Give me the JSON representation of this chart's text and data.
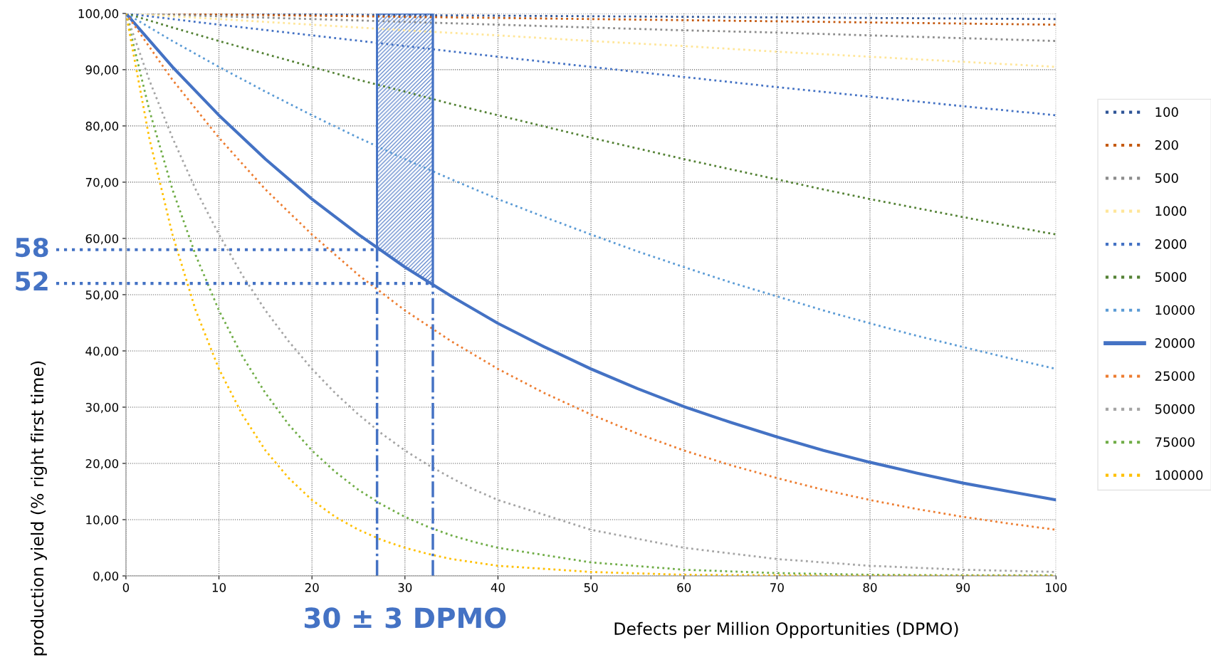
{
  "chart_data": {
    "type": "line",
    "xlabel": "Defects per Million Opportunities (DPMO)",
    "ylabel": "production yield (% right first time)",
    "xlim": [
      0,
      100
    ],
    "ylim": [
      0,
      100
    ],
    "xticks": [
      0,
      10,
      20,
      30,
      40,
      50,
      60,
      70,
      80,
      90,
      100
    ],
    "yticks": [
      {
        "value": 0,
        "label": "0,00"
      },
      {
        "value": 10,
        "label": "10,00"
      },
      {
        "value": 20,
        "label": "20,00"
      },
      {
        "value": 30,
        "label": "30,00"
      },
      {
        "value": 40,
        "label": "40,00"
      },
      {
        "value": 50,
        "label": "50,00"
      },
      {
        "value": 60,
        "label": "60,00"
      },
      {
        "value": 70,
        "label": "70,00"
      },
      {
        "value": 80,
        "label": "80,00"
      },
      {
        "value": 90,
        "label": "90,00"
      },
      {
        "value": 100,
        "label": "100,00"
      }
    ],
    "grid": true,
    "legend": "right",
    "marker": "none",
    "line_style": "dotted",
    "series": [
      {
        "name": "100",
        "color": "#2f5597",
        "x": [
          0,
          10,
          20,
          30,
          40,
          50,
          60,
          70,
          80,
          90,
          100
        ],
        "values": [
          100,
          99.9,
          99.8,
          99.7,
          99.6,
          99.5,
          99.4,
          99.3,
          99.2,
          99.1,
          99.0
        ]
      },
      {
        "name": "200",
        "color": "#c55a11",
        "x": [
          0,
          10,
          20,
          30,
          40,
          50,
          60,
          70,
          80,
          90,
          100
        ],
        "values": [
          100,
          99.8,
          99.6,
          99.4,
          99.2,
          99.0,
          98.8,
          98.6,
          98.4,
          98.2,
          98.0
        ]
      },
      {
        "name": "500",
        "color": "#8c8c8c",
        "x": [
          0,
          10,
          20,
          30,
          40,
          50,
          60,
          70,
          80,
          90,
          100
        ],
        "values": [
          100,
          99.5,
          99.0,
          98.5,
          98.0,
          97.5,
          97.0,
          96.6,
          96.1,
          95.6,
          95.1
        ]
      },
      {
        "name": "1000",
        "color": "#ffe699",
        "x": [
          0,
          10,
          20,
          30,
          40,
          50,
          60,
          70,
          80,
          90,
          100
        ],
        "values": [
          100,
          99.0,
          98.0,
          97.0,
          96.1,
          95.1,
          94.2,
          93.2,
          92.3,
          91.4,
          90.5
        ]
      },
      {
        "name": "2000",
        "color": "#4472c4",
        "x": [
          0,
          10,
          20,
          30,
          40,
          50,
          60,
          70,
          80,
          90,
          100
        ],
        "values": [
          100,
          98.0,
          96.1,
          94.2,
          92.3,
          90.5,
          88.7,
          86.9,
          85.2,
          83.5,
          81.9
        ]
      },
      {
        "name": "5000",
        "color": "#548235",
        "x": [
          0,
          5,
          10,
          15,
          20,
          25,
          30,
          35,
          40,
          45,
          50,
          55,
          60,
          65,
          70,
          75,
          80,
          85,
          90,
          95,
          100
        ],
        "values": [
          100,
          97.5,
          95.1,
          92.8,
          90.5,
          88.2,
          86.1,
          83.9,
          81.9,
          79.9,
          77.9,
          76.0,
          74.1,
          72.3,
          70.5,
          68.7,
          67.0,
          65.4,
          63.8,
          62.2,
          60.7
        ]
      },
      {
        "name": "10000",
        "color": "#5b9bd5",
        "x": [
          0,
          5,
          10,
          15,
          20,
          25,
          30,
          35,
          40,
          45,
          50,
          55,
          60,
          65,
          70,
          75,
          80,
          85,
          90,
          95,
          100
        ],
        "values": [
          100,
          95.1,
          90.5,
          86.1,
          81.9,
          77.9,
          74.1,
          70.5,
          67.0,
          63.8,
          60.7,
          57.7,
          54.9,
          52.2,
          49.7,
          47.2,
          44.9,
          42.7,
          40.7,
          38.7,
          36.8
        ]
      },
      {
        "name": "20000",
        "color": "#4472c4",
        "line_style": "solid",
        "x": [
          0,
          5,
          10,
          15,
          20,
          25,
          30,
          35,
          40,
          45,
          50,
          55,
          60,
          65,
          70,
          75,
          80,
          85,
          90,
          95,
          100
        ],
        "values": [
          100,
          90.5,
          81.9,
          74.1,
          67.0,
          60.7,
          54.9,
          49.7,
          44.9,
          40.7,
          36.8,
          33.3,
          30.1,
          27.3,
          24.7,
          22.3,
          20.2,
          18.3,
          16.5,
          15.0,
          13.5
        ]
      },
      {
        "name": "25000",
        "color": "#ed7d31",
        "x": [
          0,
          5,
          10,
          15,
          20,
          25,
          30,
          35,
          40,
          45,
          50,
          55,
          60,
          65,
          70,
          75,
          80,
          85,
          90,
          95,
          100
        ],
        "values": [
          100,
          88.2,
          77.9,
          68.7,
          60.7,
          53.5,
          47.2,
          41.7,
          36.8,
          32.5,
          28.7,
          25.3,
          22.3,
          19.7,
          17.4,
          15.3,
          13.5,
          11.9,
          10.5,
          9.3,
          8.2
        ]
      },
      {
        "name": "50000",
        "color": "#a5a5a5",
        "x": [
          0,
          2.5,
          5,
          7.5,
          10,
          12.5,
          15,
          17.5,
          20,
          22.5,
          25,
          27.5,
          30,
          32.5,
          35,
          37.5,
          40,
          50,
          60,
          70,
          80,
          90,
          100
        ],
        "values": [
          100,
          88.2,
          77.9,
          68.7,
          60.7,
          53.5,
          47.2,
          41.7,
          36.8,
          32.5,
          28.7,
          25.3,
          22.3,
          19.7,
          17.4,
          15.3,
          13.5,
          8.2,
          5.0,
          3.0,
          1.8,
          1.1,
          0.7
        ]
      },
      {
        "name": "75000",
        "color": "#70ad47",
        "x": [
          0,
          2.5,
          5,
          7.5,
          10,
          12.5,
          15,
          17.5,
          20,
          22.5,
          25,
          27.5,
          30,
          32.5,
          35,
          37.5,
          40,
          50,
          60,
          70,
          80,
          90,
          100
        ],
        "values": [
          100,
          82.9,
          68.7,
          57.0,
          47.2,
          39.1,
          32.5,
          26.9,
          22.3,
          18.5,
          15.3,
          12.7,
          10.5,
          8.7,
          7.2,
          6.0,
          5.0,
          2.4,
          1.1,
          0.5,
          0.2,
          0.1,
          0.1
        ]
      },
      {
        "name": "100000",
        "color": "#ffc000",
        "x": [
          0,
          2.5,
          5,
          7.5,
          10,
          12.5,
          15,
          17.5,
          20,
          22.5,
          25,
          27.5,
          30,
          32.5,
          35,
          37.5,
          40,
          50,
          60,
          70,
          80,
          90,
          100
        ],
        "values": [
          100,
          77.9,
          60.7,
          47.2,
          36.8,
          28.7,
          22.3,
          17.4,
          13.5,
          10.5,
          8.2,
          6.4,
          5.0,
          3.9,
          3.0,
          2.4,
          1.8,
          0.7,
          0.2,
          0.1,
          0,
          0,
          0
        ]
      }
    ],
    "bands": [
      {
        "axis": "x",
        "from": 27,
        "to": 33,
        "color": "#4472c4"
      }
    ],
    "ref_lines": [
      {
        "axis": "y",
        "value": 58,
        "label": "58",
        "color": "#4472c4",
        "line_style": "dotted"
      },
      {
        "axis": "y",
        "value": 52,
        "label": "52",
        "color": "#4472c4",
        "line_style": "dotted"
      },
      {
        "axis": "x",
        "value": 27,
        "color": "#4472c4",
        "line_style": "dashdot"
      },
      {
        "axis": "x",
        "value": 33,
        "color": "#4472c4",
        "line_style": "dashdot"
      }
    ],
    "annotations": [
      "30 ± 3 DPMO"
    ]
  }
}
